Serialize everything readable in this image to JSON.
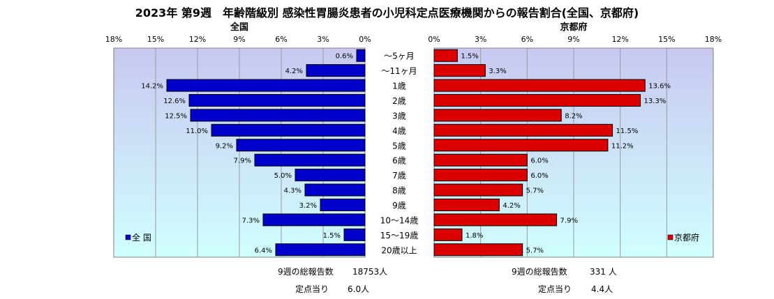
{
  "title": "2023年 第9週　年齢階級別 感染性胃腸炎患者の小児科定点医療機関からの報告割合(全国、京都府)",
  "colors": {
    "national_bar": "#0000cc",
    "kyoto_bar": "#dd0000",
    "plot_top": "#c8c8f0",
    "plot_bottom": "#d0ffff",
    "border": "#808080"
  },
  "chart_data": {
    "type": "bar",
    "orientation": "horizontal-butterfly",
    "categories": [
      "～5ヶ月",
      "～11ヶ月",
      "1歳",
      "2歳",
      "3歳",
      "4歳",
      "5歳",
      "6歳",
      "7歳",
      "8歳",
      "9歳",
      "10～14歳",
      "15～19歳",
      "20歳以上"
    ],
    "xlim": [
      0,
      18
    ],
    "ticks": [
      0,
      3,
      6,
      9,
      12,
      15,
      18
    ],
    "tick_labels": [
      "0%",
      "3%",
      "6%",
      "9%",
      "12%",
      "15%",
      "18%"
    ],
    "grid": true,
    "series": [
      {
        "name": "全 国",
        "panel_title": "全国",
        "values": [
          0.6,
          4.2,
          14.2,
          12.6,
          12.5,
          11.0,
          9.2,
          7.9,
          5.0,
          4.3,
          3.2,
          7.3,
          1.5,
          6.4
        ],
        "value_labels": [
          "0.6%",
          "4.2%",
          "14.2%",
          "12.6%",
          "12.5%",
          "11.0%",
          "9.2%",
          "7.9%",
          "5.0%",
          "4.3%",
          "3.2%",
          "7.3%",
          "1.5%",
          "6.4%"
        ],
        "legend_position": "bottom-left"
      },
      {
        "name": "京都府",
        "panel_title": "京都府",
        "values": [
          1.5,
          3.3,
          13.6,
          13.3,
          8.2,
          11.5,
          11.2,
          6.0,
          6.0,
          5.7,
          4.2,
          7.9,
          1.8,
          5.7
        ],
        "value_labels": [
          "1.5%",
          "3.3%",
          "13.6%",
          "13.3%",
          "8.2%",
          "11.5%",
          "11.2%",
          "6.0%",
          "6.0%",
          "5.7%",
          "4.2%",
          "7.9%",
          "1.8%",
          "5.7%"
        ],
        "legend_position": "bottom-right"
      }
    ]
  },
  "summary": {
    "national": {
      "total_label": "9週の総報告数",
      "total_value": "18753人",
      "per_site_label": "定点当り",
      "per_site_value": "6.0人"
    },
    "kyoto": {
      "total_label": "9週の総報告数",
      "total_value": "331 人",
      "per_site_label": "定点当り",
      "per_site_value": "4.4人"
    }
  }
}
